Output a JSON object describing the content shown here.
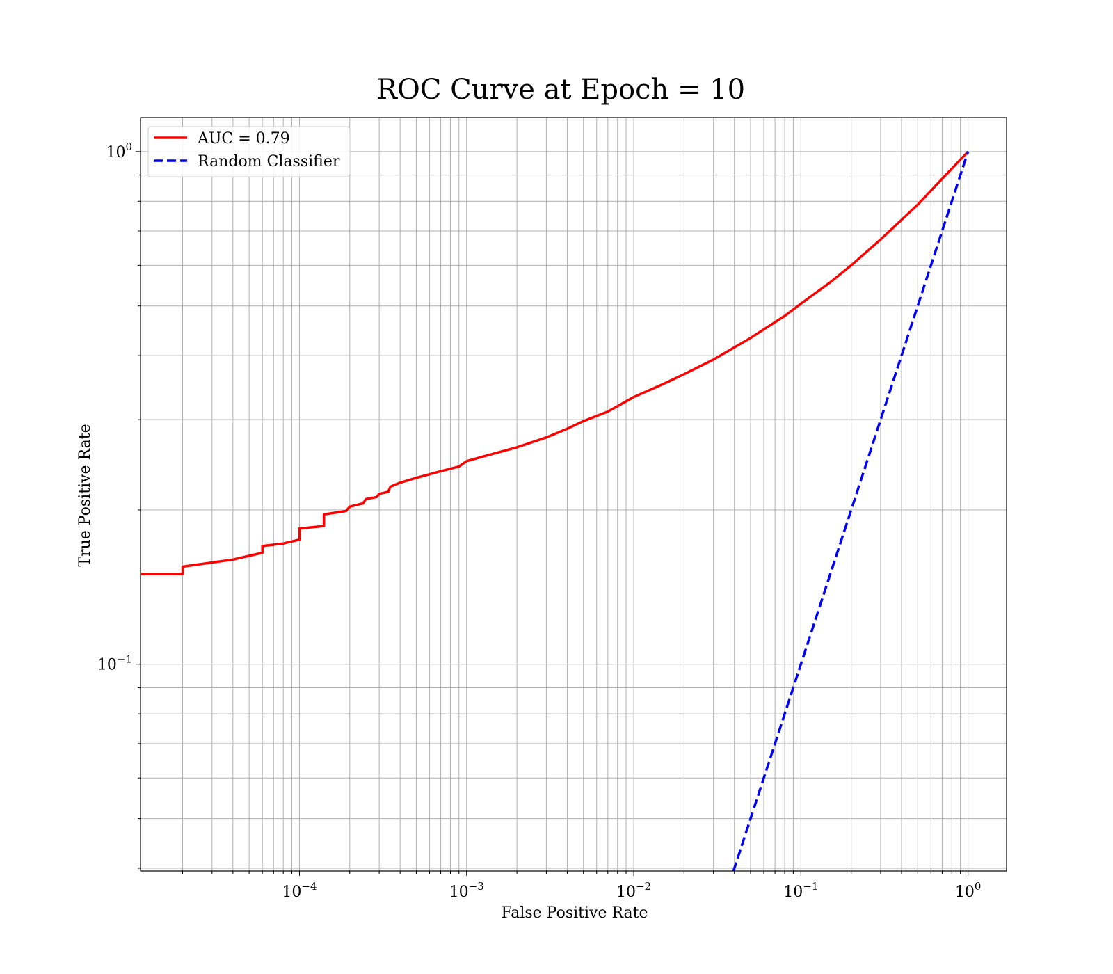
{
  "chart_data": {
    "type": "line",
    "title": "ROC Curve at Epoch = 10",
    "xlabel": "False Positive Rate",
    "ylabel": "True Positive Rate",
    "xscale": "log",
    "yscale": "log",
    "xlim": [
      1.12e-05,
      1.7
    ],
    "ylim": [
      0.0395,
      1.165
    ],
    "grid": true,
    "legend": "top-left",
    "x_ticks": [
      {
        "base": "10",
        "exp": "−4",
        "value": 0.0001
      },
      {
        "base": "10",
        "exp": "−3",
        "value": 0.001
      },
      {
        "base": "10",
        "exp": "−2",
        "value": 0.01
      },
      {
        "base": "10",
        "exp": "−1",
        "value": 0.1
      },
      {
        "base": "10",
        "exp": "0",
        "value": 1
      }
    ],
    "y_ticks": [
      {
        "base": "10",
        "exp": "−1",
        "value": 0.1
      },
      {
        "base": "10",
        "exp": "0",
        "value": 1
      }
    ],
    "series": [
      {
        "name": "AUC = 0.79",
        "color": "#ff0000",
        "style": "solid",
        "x": [
          1.12e-05,
          2e-05,
          2e-05,
          4e-05,
          6e-05,
          6e-05,
          8e-05,
          0.0001,
          0.0001,
          0.00014,
          0.00014,
          0.00019,
          0.0002,
          0.00024,
          0.00025,
          0.00029,
          0.0003,
          0.00034,
          0.00035,
          0.0004,
          0.0005,
          0.0007,
          0.0009,
          0.001,
          0.0013,
          0.002,
          0.003,
          0.004,
          0.005,
          0.007,
          0.01,
          0.015,
          0.02,
          0.03,
          0.05,
          0.08,
          0.1,
          0.15,
          0.2,
          0.3,
          0.5,
          0.7,
          1.0
        ],
        "y": [
          0.15,
          0.15,
          0.155,
          0.16,
          0.165,
          0.17,
          0.172,
          0.175,
          0.184,
          0.186,
          0.196,
          0.199,
          0.203,
          0.206,
          0.21,
          0.212,
          0.215,
          0.217,
          0.222,
          0.226,
          0.231,
          0.238,
          0.243,
          0.249,
          0.255,
          0.265,
          0.277,
          0.288,
          0.298,
          0.311,
          0.332,
          0.352,
          0.368,
          0.393,
          0.433,
          0.478,
          0.505,
          0.556,
          0.6,
          0.674,
          0.788,
          0.885,
          1.0
        ]
      },
      {
        "name": "Random Classifier",
        "color": "#0000ff",
        "style": "dashed",
        "x": [
          0.0395,
          1.0
        ],
        "y": [
          0.0395,
          1.0
        ]
      }
    ]
  }
}
